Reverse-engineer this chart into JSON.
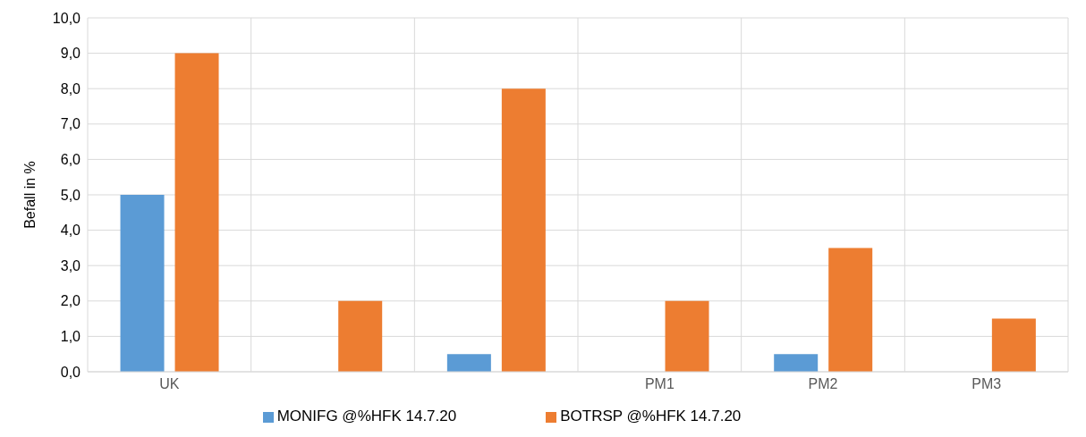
{
  "chart_data": {
    "type": "bar",
    "ylabel": "Befall in %",
    "categories": [
      "UK",
      null,
      null,
      "PM1",
      "PM2",
      "PM3"
    ],
    "series": [
      {
        "name": "MONIFG @%HFK 14.7.20",
        "color": "#5b9bd5",
        "values": [
          5,
          0,
          0.5,
          0,
          0.5,
          0
        ]
      },
      {
        "name": "BOTRSP @%HFK 14.7.20",
        "color": "#ed7d31",
        "values": [
          9,
          2,
          8,
          2,
          3.5,
          1.5
        ]
      }
    ],
    "ylim": [
      0,
      10
    ],
    "yticks": [
      {
        "value": 0,
        "label": "0,0"
      },
      {
        "value": 1,
        "label": "1,0"
      },
      {
        "value": 2,
        "label": "2,0"
      },
      {
        "value": 3,
        "label": "3,0"
      },
      {
        "value": 4,
        "label": "4,0"
      },
      {
        "value": 5,
        "label": "5,0"
      },
      {
        "value": 6,
        "label": "6,0"
      },
      {
        "value": 7,
        "label": "7,0"
      },
      {
        "value": 8,
        "label": "8,0"
      },
      {
        "value": 9,
        "label": "9,0"
      },
      {
        "value": 10,
        "label": "10,0"
      }
    ],
    "grid": true,
    "legend": "bottom"
  }
}
